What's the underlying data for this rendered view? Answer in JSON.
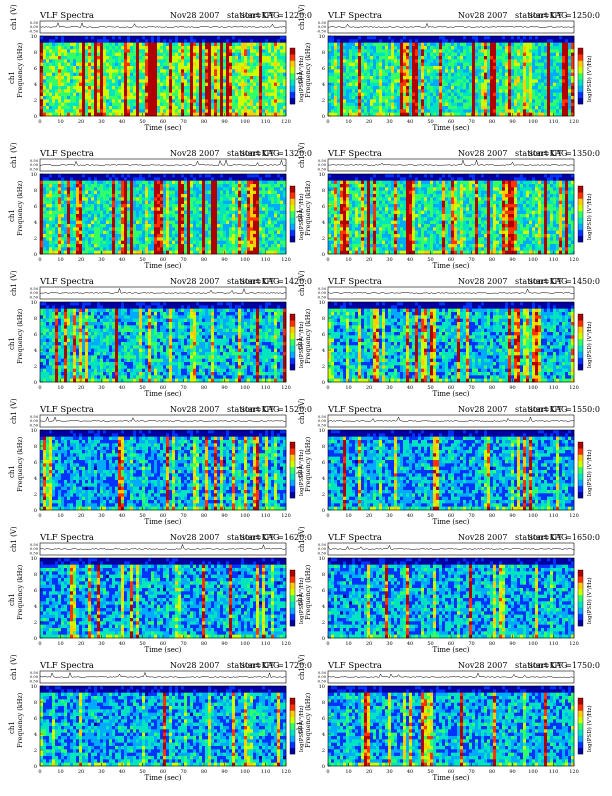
{
  "page": {
    "colors": {
      "background": "#ffffff",
      "line": "#000000"
    },
    "colormap": [
      "#0000a0",
      "#0033ff",
      "#00aaff",
      "#00e5c0",
      "#33ff66",
      "#ccff00",
      "#ffcc00",
      "#ff3300",
      "#b00000"
    ]
  },
  "chart_data": [
    {
      "type": "heatmap",
      "header": {
        "title": "VLF Spectra",
        "date": "Nov28 2007",
        "station": "station=KAG",
        "start": "start  UT  =1220:0"
      },
      "ylabel_top": "ch1 (V)",
      "yticks_top": [
        "0.50",
        "0.00",
        "-0.50"
      ],
      "ylabel": "ch1\nFrequency (kHz)",
      "yticks": [
        "0",
        "2",
        "4",
        "6",
        "8",
        "10"
      ],
      "xlabel": "Time  (sec)",
      "xticks": [
        "0",
        "10",
        "20",
        "30",
        "40",
        "50",
        "60",
        "70",
        "80",
        "90",
        "100",
        "110",
        "120"
      ],
      "xlim": [
        0,
        120
      ],
      "ylim": [
        0,
        10
      ],
      "colorbar_label": "log(PSD) (V²/Hz)",
      "intensity": 0.75
    },
    {
      "type": "heatmap",
      "header": {
        "title": "VLF Spectra",
        "date": "Nov28 2007",
        "station": "station=KAG",
        "start": "start  UT  =1250:0"
      },
      "ylabel_top": "ch1 (V)",
      "yticks_top": [
        "0.50",
        "0.00",
        "-0.50"
      ],
      "ylabel": "ch1\nFrequency (kHz)",
      "yticks": [
        "0",
        "2",
        "4",
        "6",
        "8",
        "10"
      ],
      "xlabel": "Time  (sec)",
      "xticks": [
        "0",
        "10",
        "20",
        "30",
        "40",
        "50",
        "60",
        "70",
        "80",
        "90",
        "100",
        "110",
        "120"
      ],
      "xlim": [
        0,
        120
      ],
      "ylim": [
        0,
        10
      ],
      "colorbar_label": "log(PSD) (V²/Hz)",
      "intensity": 0.55
    },
    {
      "type": "heatmap",
      "header": {
        "title": "VLF Spectra",
        "date": "Nov28 2007",
        "station": "station=KAG",
        "start": "start  UT  =1320:0"
      },
      "ylabel_top": "ch1 (V)",
      "yticks_top": [
        "0.50",
        "0.00",
        "-0.50"
      ],
      "ylabel": "ch1\nFrequency (kHz)",
      "yticks": [
        "0",
        "2",
        "4",
        "6",
        "8",
        "10"
      ],
      "xlabel": "Time  (sec)",
      "xticks": [
        "0",
        "10",
        "20",
        "30",
        "40",
        "50",
        "60",
        "70",
        "80",
        "90",
        "100",
        "110",
        "120"
      ],
      "xlim": [
        0,
        120
      ],
      "ylim": [
        0,
        10
      ],
      "colorbar_label": "log(PSD) (V²/Hz)",
      "intensity": 0.55
    },
    {
      "type": "heatmap",
      "header": {
        "title": "VLF Spectra",
        "date": "Nov28 2007",
        "station": "station=KAG",
        "start": "start  UT  =1350:0"
      },
      "ylabel_top": "ch1 (V)",
      "yticks_top": [
        "0.50",
        "0.00",
        "-0.50"
      ],
      "ylabel": "ch1\nFrequency (kHz)",
      "yticks": [
        "0",
        "2",
        "4",
        "6",
        "8",
        "10"
      ],
      "xlabel": "Time  (sec)",
      "xticks": [
        "0",
        "10",
        "20",
        "30",
        "40",
        "50",
        "60",
        "70",
        "80",
        "90",
        "100",
        "110",
        "120"
      ],
      "xlim": [
        0,
        120
      ],
      "ylim": [
        0,
        10
      ],
      "colorbar_label": "log(PSD) (V²/Hz)",
      "intensity": 0.55
    },
    {
      "type": "heatmap",
      "header": {
        "title": "VLF Spectra",
        "date": "Nov28 2007",
        "station": "station=KAG",
        "start": "start  UT  =1420:0"
      },
      "ylabel_top": "ch1 (V)",
      "yticks_top": [
        "0.50",
        "0.00",
        "-0.50"
      ],
      "ylabel": "ch1\nFrequency (kHz)",
      "yticks": [
        "0",
        "2",
        "4",
        "6",
        "8",
        "10"
      ],
      "xlabel": "Time  (sec)",
      "xticks": [
        "0",
        "10",
        "20",
        "30",
        "40",
        "50",
        "60",
        "70",
        "80",
        "90",
        "100",
        "110",
        "120"
      ],
      "xlim": [
        0,
        120
      ],
      "ylim": [
        0,
        10
      ],
      "colorbar_label": "log(PSD) (V²/Hz)",
      "intensity": 0.4
    },
    {
      "type": "heatmap",
      "header": {
        "title": "VLF Spectra",
        "date": "Nov28 2007",
        "station": "station=KAG",
        "start": "start  UT  =1450:0"
      },
      "ylabel_top": "ch1 (V)",
      "yticks_top": [
        "0.50",
        "0.00",
        "-0.50"
      ],
      "ylabel": "ch1\nFrequency (kHz)",
      "yticks": [
        "0",
        "2",
        "4",
        "6",
        "8",
        "10"
      ],
      "xlabel": "Time  (sec)",
      "xticks": [
        "0",
        "10",
        "20",
        "30",
        "40",
        "50",
        "60",
        "70",
        "80",
        "90",
        "100",
        "110",
        "120"
      ],
      "xlim": [
        0,
        120
      ],
      "ylim": [
        0,
        10
      ],
      "colorbar_label": "log(PSD) (V²/Hz)",
      "intensity": 0.38
    },
    {
      "type": "heatmap",
      "header": {
        "title": "VLF Spectra",
        "date": "Nov28 2007",
        "station": "station=KAG",
        "start": "start  UT  =1520:0"
      },
      "ylabel_top": "ch1 (V)",
      "yticks_top": [
        "0.50",
        "0.00",
        "-0.50"
      ],
      "ylabel": "ch1\nFrequency (kHz)",
      "yticks": [
        "0",
        "2",
        "4",
        "6",
        "8",
        "10"
      ],
      "xlabel": "Time  (sec)",
      "xticks": [
        "0",
        "10",
        "20",
        "30",
        "40",
        "50",
        "60",
        "70",
        "80",
        "90",
        "100",
        "110",
        "120"
      ],
      "xlim": [
        0,
        120
      ],
      "ylim": [
        0,
        10
      ],
      "colorbar_label": "log(PSD) (V²/Hz)",
      "intensity": 0.3
    },
    {
      "type": "heatmap",
      "header": {
        "title": "VLF Spectra",
        "date": "Nov28 2007",
        "station": "station=KAG",
        "start": "start  UT  =1550:0"
      },
      "ylabel_top": "ch1 (V)",
      "yticks_top": [
        "0.50",
        "0.00",
        "-0.50"
      ],
      "ylabel": "ch1\nFrequency (kHz)",
      "yticks": [
        "0",
        "2",
        "4",
        "6",
        "8",
        "10"
      ],
      "xlabel": "Time  (sec)",
      "xticks": [
        "0",
        "10",
        "20",
        "30",
        "40",
        "50",
        "60",
        "70",
        "80",
        "90",
        "100",
        "110",
        "120"
      ],
      "xlim": [
        0,
        120
      ],
      "ylim": [
        0,
        10
      ],
      "colorbar_label": "log(PSD) (V²/Hz)",
      "intensity": 0.3
    },
    {
      "type": "heatmap",
      "header": {
        "title": "VLF Spectra",
        "date": "Nov28 2007",
        "station": "station=KAG",
        "start": "start  UT  =1620:0"
      },
      "ylabel_top": "ch1 (V)",
      "yticks_top": [
        "0.50",
        "0.00",
        "-0.50"
      ],
      "ylabel": "ch1\nFrequency (kHz)",
      "yticks": [
        "0",
        "2",
        "4",
        "6",
        "8",
        "10"
      ],
      "xlabel": "Time  (sec)",
      "xticks": [
        "0",
        "10",
        "20",
        "30",
        "40",
        "50",
        "60",
        "70",
        "80",
        "90",
        "100",
        "110",
        "120"
      ],
      "xlim": [
        0,
        120
      ],
      "ylim": [
        0,
        10
      ],
      "colorbar_label": "log(PSD) (V²/Hz)",
      "intensity": 0.3
    },
    {
      "type": "heatmap",
      "header": {
        "title": "VLF Spectra",
        "date": "Nov28 2007",
        "station": "station=KAG",
        "start": "start  UT  =1650:0"
      },
      "ylabel_top": "ch1 (V)",
      "yticks_top": [
        "0.50",
        "0.00",
        "-0.50"
      ],
      "ylabel": "ch1\nFrequency (kHz)",
      "yticks": [
        "0",
        "2",
        "4",
        "6",
        "8",
        "10"
      ],
      "xlabel": "Time  (sec)",
      "xticks": [
        "0",
        "10",
        "20",
        "30",
        "40",
        "50",
        "60",
        "70",
        "80",
        "90",
        "100",
        "110",
        "120"
      ],
      "xlim": [
        0,
        120
      ],
      "ylim": [
        0,
        10
      ],
      "colorbar_label": "log(PSD) (V²/Hz)",
      "intensity": 0.3
    },
    {
      "type": "heatmap",
      "header": {
        "title": "VLF Spectra",
        "date": "Nov28 2007",
        "station": "station=KAG",
        "start": "start  UT  =1720:0"
      },
      "ylabel_top": "ch1 (V)",
      "yticks_top": [
        "0.50",
        "0.00",
        "-0.50"
      ],
      "ylabel": "ch1\nFrequency (kHz)",
      "yticks": [
        "0",
        "2",
        "4",
        "6",
        "8",
        "10"
      ],
      "xlabel": "Time  (sec)",
      "xticks": [
        "0",
        "10",
        "20",
        "30",
        "40",
        "50",
        "60",
        "70",
        "80",
        "90",
        "100",
        "110",
        "120"
      ],
      "xlim": [
        0,
        120
      ],
      "ylim": [
        0,
        10
      ],
      "colorbar_label": "log(PSD) (V²/Hz)",
      "intensity": 0.3
    },
    {
      "type": "heatmap",
      "header": {
        "title": "VLF Spectra",
        "date": "Nov28 2007",
        "station": "station=KAG",
        "start": "start  UT  =1750:0"
      },
      "ylabel_top": "ch1 (V)",
      "yticks_top": [
        "0.50",
        "0.00",
        "-0.50"
      ],
      "ylabel": "ch1\nFrequency (kHz)",
      "yticks": [
        "0",
        "2",
        "4",
        "6",
        "8",
        "10"
      ],
      "xlabel": "Time  (sec)",
      "xticks": [
        "0",
        "10",
        "20",
        "30",
        "40",
        "50",
        "60",
        "70",
        "80",
        "90",
        "100",
        "110",
        "120"
      ],
      "xlim": [
        0,
        120
      ],
      "ylim": [
        0,
        10
      ],
      "colorbar_label": "log(PSD) (V²/Hz)",
      "intensity": 0.32
    }
  ]
}
